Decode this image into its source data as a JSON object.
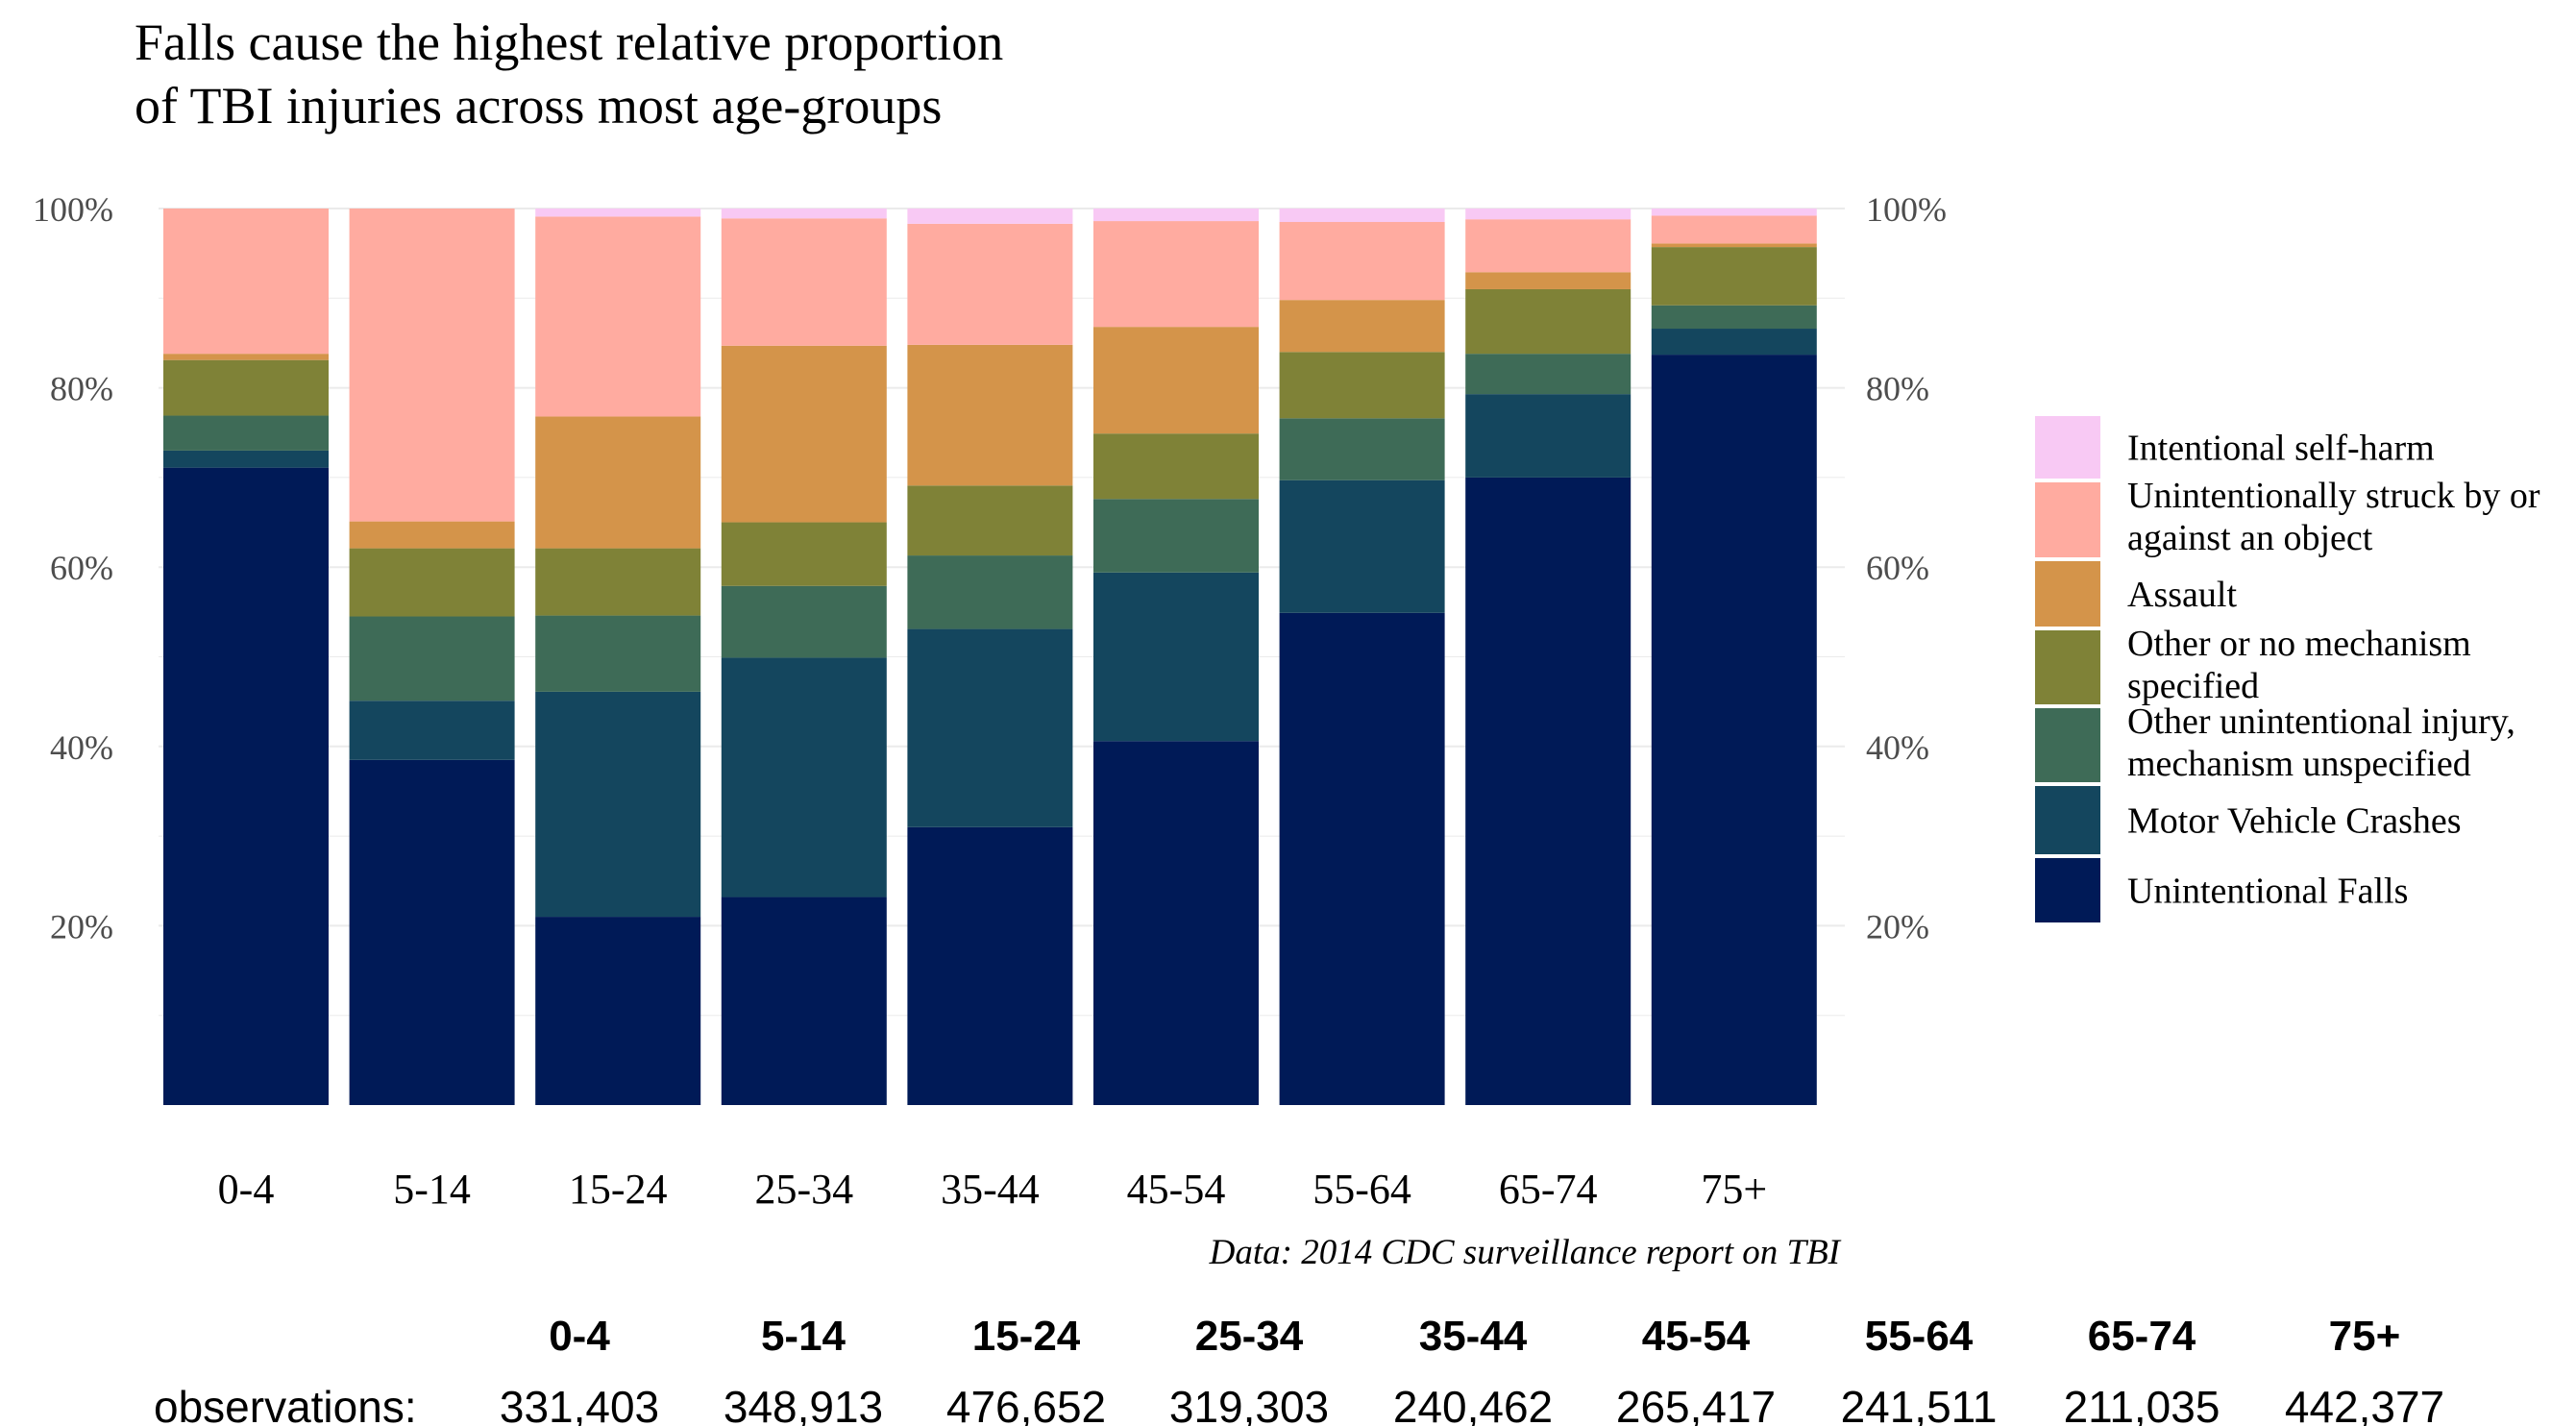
{
  "chart_data": {
    "type": "bar",
    "stacked": true,
    "normalized": true,
    "title": "Falls cause the highest relative proportion of TBI injuries across most age-groups",
    "title_lines": [
      "Falls cause the highest relative proportion",
      "of TBI injuries across most age-groups"
    ],
    "caption": "Data: 2014 CDC surveillance report on TBI",
    "xlabel": "",
    "ylabel": "",
    "ylim": [
      0,
      1
    ],
    "yticks": [
      0.2,
      0.4,
      0.6,
      0.8,
      1.0
    ],
    "ytick_labels": [
      "20%",
      "40%",
      "60%",
      "80%",
      "100%"
    ],
    "secondary_axis": "right",
    "grid": true,
    "legend_position": "right",
    "categories": [
      "0-4",
      "5-14",
      "15-24",
      "25-34",
      "35-44",
      "45-54",
      "55-64",
      "65-74",
      "75+"
    ],
    "series": [
      {
        "name": "Unintentional Falls",
        "color": "#001a57",
        "values": [
          0.711,
          0.385,
          0.21,
          0.232,
          0.31,
          0.406,
          0.549,
          0.7,
          0.837
        ]
      },
      {
        "name": "Motor Vehicle Crashes",
        "color": "#14465e",
        "values": [
          0.019,
          0.066,
          0.251,
          0.267,
          0.221,
          0.188,
          0.148,
          0.093,
          0.029
        ]
      },
      {
        "name": "Other unintentional injury, mechanism unspecified",
        "color": "#3e6b57",
        "values": [
          0.039,
          0.094,
          0.085,
          0.08,
          0.082,
          0.082,
          0.069,
          0.045,
          0.026
        ]
      },
      {
        "name": "Other or no mechanism specified",
        "color": "#7f8237",
        "values": [
          0.062,
          0.076,
          0.075,
          0.071,
          0.078,
          0.073,
          0.074,
          0.072,
          0.065
        ]
      },
      {
        "name": "Assault",
        "color": "#d4944a",
        "values": [
          0.007,
          0.03,
          0.147,
          0.197,
          0.157,
          0.119,
          0.058,
          0.019,
          0.004
        ]
      },
      {
        "name": "Unintentionally struck by or against an object",
        "color": "#ffaba0",
        "values": [
          0.162,
          0.349,
          0.223,
          0.142,
          0.135,
          0.118,
          0.087,
          0.059,
          0.031
        ]
      },
      {
        "name": "Intentional self-harm",
        "color": "#f8c9f4",
        "values": [
          0.0,
          0.0,
          0.009,
          0.011,
          0.017,
          0.014,
          0.015,
          0.012,
          0.008
        ]
      }
    ]
  },
  "table": {
    "row_label": "observations:",
    "headers": [
      "0-4",
      "5-14",
      "15-24",
      "25-34",
      "35-44",
      "45-54",
      "55-64",
      "65-74",
      "75+"
    ],
    "observations": [
      "331,403",
      "348,913",
      "476,652",
      "319,303",
      "240,462",
      "265,417",
      "241,511",
      "211,035",
      "442,377"
    ]
  }
}
